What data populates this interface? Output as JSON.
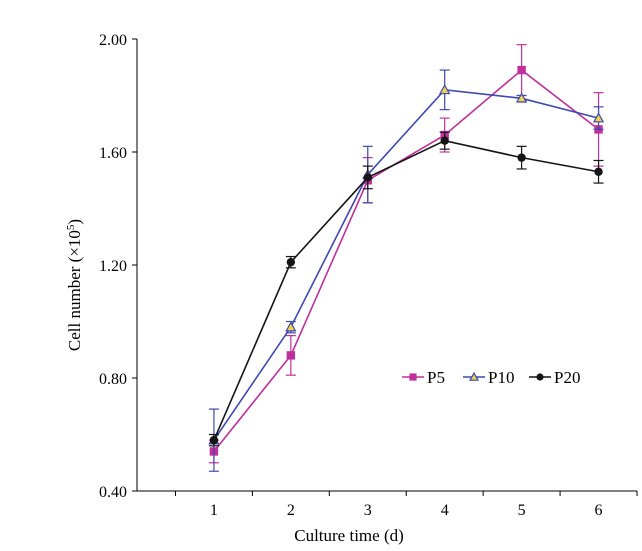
{
  "chart_data": {
    "type": "line",
    "title": "",
    "xlabel": "Culture time (d)",
    "ylabel_main": "Cell number (×10",
    "ylabel_sup": "5",
    "ylabel_close": ")",
    "x": [
      1,
      2,
      3,
      4,
      5,
      6
    ],
    "x_tick_labels": [
      "1",
      "2",
      "3",
      "4",
      "5",
      "6"
    ],
    "xlim": [
      0,
      6.5
    ],
    "ylim": [
      0.4,
      2.0
    ],
    "y_ticks": [
      0.4,
      0.8,
      1.2,
      1.6,
      2.0
    ],
    "y_tick_labels": [
      "0.40",
      "0.80",
      "1.20",
      "1.60",
      "2.00"
    ],
    "grid": false,
    "legend_position": "center-right",
    "series": [
      {
        "name": "P5",
        "color": "#c0309c",
        "marker": "square",
        "values": [
          0.54,
          0.88,
          1.5,
          1.66,
          1.89,
          1.68
        ],
        "errors": [
          0.04,
          0.07,
          0.08,
          0.06,
          0.09,
          0.13
        ]
      },
      {
        "name": "P10",
        "color": "#3d49b0",
        "marker": "triangle",
        "values": [
          0.58,
          0.98,
          1.52,
          1.82,
          1.79,
          1.72
        ],
        "errors": [
          0.11,
          0.02,
          0.1,
          0.07,
          0.01,
          0.04
        ]
      },
      {
        "name": "P20",
        "color": "#151515",
        "marker": "circle",
        "values": [
          0.58,
          1.21,
          1.51,
          1.64,
          1.58,
          1.53
        ],
        "errors": [
          0.02,
          0.02,
          0.04,
          0.03,
          0.04,
          0.04
        ]
      }
    ],
    "legend": [
      "P5",
      "P10",
      "P20"
    ]
  }
}
